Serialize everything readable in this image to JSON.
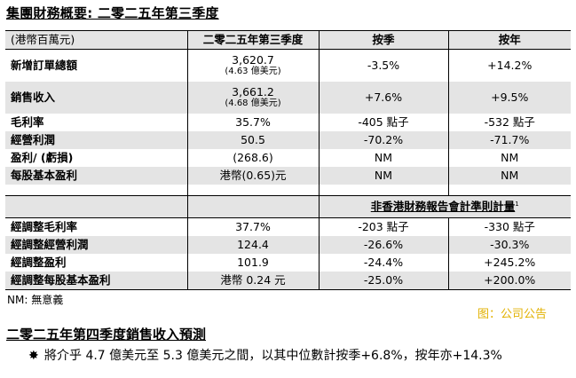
{
  "title": "集團財務概要: 二零二五年第三季度",
  "table": {
    "headers": [
      "(港幣百萬元)",
      "二零二五年第三季度",
      "按季",
      "按年"
    ],
    "rows1": [
      {
        "label": "新增訂單總額",
        "value": "3,620.7",
        "sub": "(4.63 億美元)",
        "qoq": "-3.5%",
        "yoy": "+14.2%"
      },
      {
        "label": "銷售收入",
        "value": "3,661.2",
        "sub": "(4.68 億美元)",
        "qoq": "+7.6%",
        "yoy": "+9.5%"
      },
      {
        "label": "毛利率",
        "value": "35.7%",
        "qoq": "-405 點子",
        "yoy": "-532 點子"
      },
      {
        "label": "經營利潤",
        "value": "50.5",
        "qoq": "-70.2%",
        "yoy": "-71.7%"
      },
      {
        "label": "盈利/ (虧損)",
        "value": "(268.6)",
        "qoq": "NM",
        "yoy": "NM"
      },
      {
        "label": "每股基本盈利",
        "value": "港幣(0.65)元",
        "qoq": "NM",
        "yoy": "NM"
      }
    ],
    "nonhkfrs_title": "非香港財務報告會計準則計量",
    "nonhkfrs_sup": "1",
    "rows2": [
      {
        "label": "經調整毛利率",
        "value": "37.7%",
        "qoq": "-203 點子",
        "yoy": "-330 點子"
      },
      {
        "label": "經調整經營利潤",
        "value": "124.4",
        "qoq": "-26.6%",
        "yoy": "-30.3%"
      },
      {
        "label": "經調整盈利",
        "value": "101.9",
        "qoq": "-24.4%",
        "yoy": "+245.2%"
      },
      {
        "label": "經調整每股基本盈利",
        "value": "港幣 0.24 元",
        "qoq": "-25.0%",
        "yoy": "+200.0%"
      }
    ]
  },
  "note": "NM: 無意義",
  "source": "图：公司公告",
  "section2_title": "二零二五年第四季度銷售收入預測",
  "bullet_symbol": "✸",
  "bullet_text": "將介乎 4.7 億美元至 5.3 億美元之間，以其中位數計按季+6.8%，按年亦+14.3%"
}
